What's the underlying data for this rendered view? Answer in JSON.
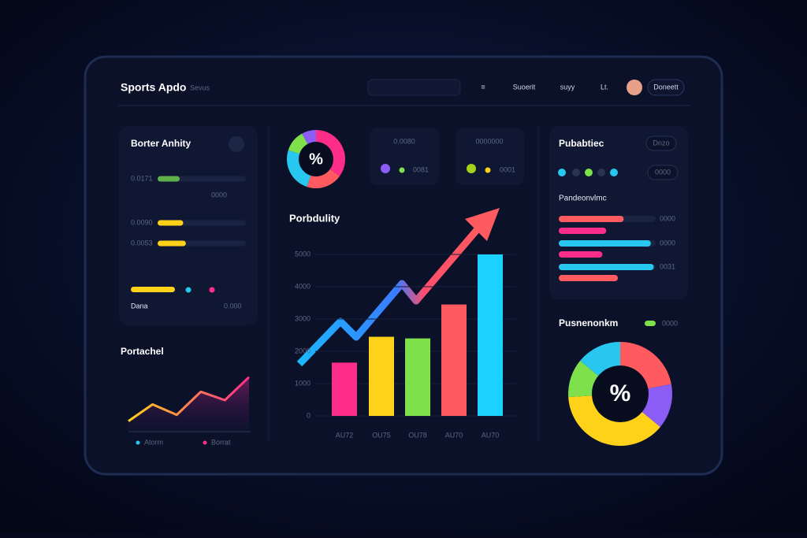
{
  "header": {
    "title": "Sports Apdo",
    "subtitle": "Sevus",
    "nav": [
      "≡",
      "Suoerit",
      "suyy",
      "Lt."
    ],
    "button": "Doneett"
  },
  "left_panel": {
    "title": "Borter Anhity",
    "xlim": [
      0,
      100
    ],
    "bars": [
      {
        "label": "0.0171",
        "value": 25,
        "color": "#5fb04a"
      },
      {
        "label": "0.0090",
        "value": 29,
        "color": "#ffd21a"
      },
      {
        "label": "0.0053",
        "value": 32,
        "color": "#ffd21a"
      }
    ],
    "notes": [
      "0000",
      "0.000",
      "Dana"
    ]
  },
  "trend": {
    "type": "area",
    "title": "Portachel",
    "values": [
      1,
      2.6,
      1.6,
      3.8,
      3,
      5.2
    ],
    "ylim": [
      0,
      6
    ],
    "legend": [
      {
        "name": "Atorm",
        "color": "#27c7f0"
      },
      {
        "name": "Borrat",
        "color": "#ff2d8a"
      }
    ]
  },
  "top_donut": {
    "type": "pie",
    "center_label": "%",
    "values": [
      35,
      20,
      25,
      12,
      8
    ],
    "colors": [
      "#ff2d8a",
      "#ff5a5f",
      "#27c7f0",
      "#7ee04a",
      "#8b5cf6"
    ]
  },
  "cards": [
    {
      "title": "0.0080",
      "value_text": "0081"
    },
    {
      "title": "0000000",
      "value_text": "0001"
    }
  ],
  "main_chart": {
    "type": "bar",
    "title": "Porbdulity",
    "categories": [
      "AU72",
      "OU75",
      "OU78",
      "AU70",
      "AU70"
    ],
    "values": [
      1650,
      2450,
      2400,
      3450,
      5000
    ],
    "colors": [
      "#ff2d8a",
      "#ffd21a",
      "#7ee04a",
      "#ff5a5f",
      "#1ad1ff"
    ],
    "ylim": [
      0,
      5000
    ],
    "yticks": [
      0,
      1000,
      2000,
      3000,
      4000,
      5000
    ]
  },
  "right_panel": {
    "title": "Pubabtiec",
    "pill": "Dnzo",
    "pill2": "0000",
    "subtitle": "Pandeonvlmc",
    "xlim": [
      0,
      100
    ],
    "rows": [
      {
        "value": 67,
        "color": "#ff5a5f",
        "label": "0000"
      },
      {
        "value": 49,
        "color": "#ff2d8a"
      },
      {
        "value": 95,
        "color": "#27c7f0",
        "label": "0000"
      },
      {
        "value": 45,
        "color": "#ff2d8a"
      },
      {
        "value": 98,
        "color": "#27c7f0",
        "label": "0031"
      },
      {
        "value": 61,
        "color": "#ff5a5f"
      }
    ]
  },
  "bottom_donut": {
    "type": "pie",
    "title": "Pusnenonkm",
    "legend": "0000",
    "center_label": "%",
    "values": [
      22,
      14,
      38,
      12,
      14
    ],
    "colors": [
      "#ff5a5f",
      "#8b5cf6",
      "#ffd21a",
      "#7ee04a",
      "#27c7f0"
    ]
  }
}
